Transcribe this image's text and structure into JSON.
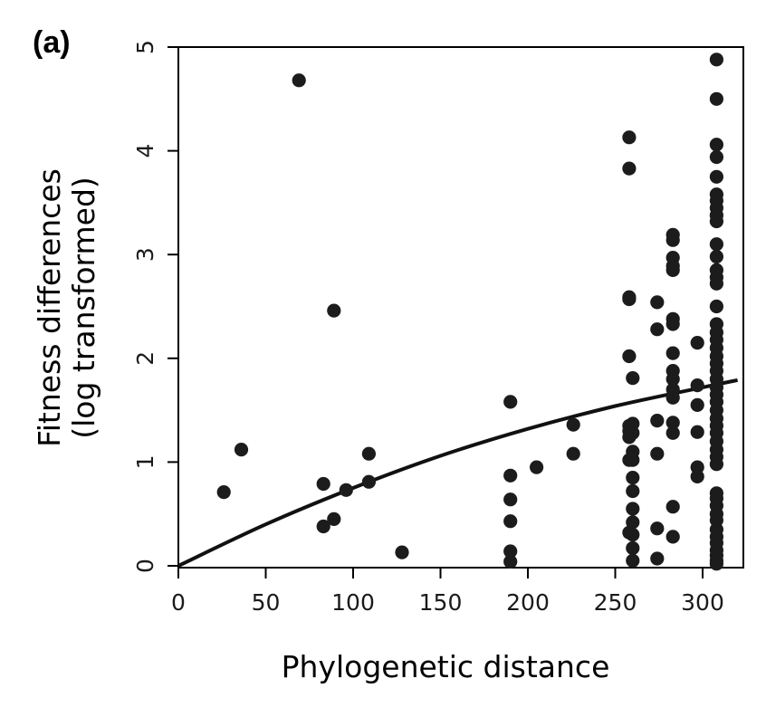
{
  "chart_data": {
    "type": "scatter",
    "panel_label": "(a)",
    "xlabel": "Phylogenetic distance",
    "ylabel_line1": "Fitness differences",
    "ylabel_line2": "(log transformed)",
    "xlim": [
      0,
      320
    ],
    "ylim": [
      0,
      5
    ],
    "x_ticks": [
      0,
      50,
      100,
      150,
      200,
      250,
      300
    ],
    "y_ticks": [
      0,
      1,
      2,
      3,
      4,
      5
    ],
    "grid": false,
    "fit_curve": {
      "type": "saturating curve through origin",
      "points": [
        [
          0,
          0
        ],
        [
          50,
          0.4
        ],
        [
          100,
          0.75
        ],
        [
          150,
          1.06
        ],
        [
          200,
          1.32
        ],
        [
          250,
          1.54
        ],
        [
          300,
          1.72
        ],
        [
          320,
          1.79
        ]
      ]
    },
    "points": [
      [
        26,
        0.71
      ],
      [
        36,
        1.12
      ],
      [
        69,
        4.68
      ],
      [
        83,
        0.79
      ],
      [
        83,
        0.38
      ],
      [
        89,
        2.46
      ],
      [
        89,
        0.45
      ],
      [
        96,
        0.73
      ],
      [
        109,
        1.08
      ],
      [
        109,
        0.81
      ],
      [
        128,
        0.13
      ],
      [
        190,
        1.58
      ],
      [
        190,
        0.87
      ],
      [
        190,
        0.64
      ],
      [
        190,
        0.43
      ],
      [
        190,
        0.14
      ],
      [
        190,
        0.04
      ],
      [
        205,
        0.95
      ],
      [
        226,
        1.36
      ],
      [
        226,
        1.08
      ],
      [
        258,
        4.13
      ],
      [
        258,
        3.83
      ],
      [
        258,
        2.59
      ],
      [
        258,
        2.57
      ],
      [
        258,
        2.02
      ],
      [
        258,
        1.35
      ],
      [
        258,
        1.3
      ],
      [
        258,
        1.24
      ],
      [
        258,
        1.02
      ],
      [
        258,
        0.32
      ],
      [
        260,
        1.81
      ],
      [
        260,
        1.37
      ],
      [
        260,
        1.28
      ],
      [
        260,
        1.1
      ],
      [
        260,
        1.02
      ],
      [
        260,
        0.85
      ],
      [
        260,
        0.72
      ],
      [
        260,
        0.55
      ],
      [
        260,
        0.42
      ],
      [
        260,
        0.3
      ],
      [
        260,
        0.17
      ],
      [
        260,
        0.05
      ],
      [
        274,
        2.54
      ],
      [
        274,
        2.28
      ],
      [
        274,
        1.4
      ],
      [
        274,
        1.08
      ],
      [
        274,
        0.36
      ],
      [
        274,
        0.07
      ],
      [
        283,
        3.19
      ],
      [
        283,
        3.14
      ],
      [
        283,
        2.97
      ],
      [
        283,
        2.89
      ],
      [
        283,
        2.85
      ],
      [
        283,
        2.38
      ],
      [
        283,
        2.33
      ],
      [
        283,
        2.05
      ],
      [
        283,
        1.88
      ],
      [
        283,
        1.8
      ],
      [
        283,
        1.7
      ],
      [
        283,
        1.62
      ],
      [
        283,
        1.38
      ],
      [
        283,
        1.28
      ],
      [
        283,
        0.57
      ],
      [
        283,
        0.28
      ],
      [
        297,
        2.15
      ],
      [
        297,
        1.74
      ],
      [
        297,
        1.55
      ],
      [
        297,
        1.29
      ],
      [
        297,
        0.95
      ],
      [
        297,
        0.86
      ],
      [
        308,
        4.88
      ],
      [
        308,
        4.5
      ],
      [
        308,
        4.06
      ],
      [
        308,
        3.94
      ],
      [
        308,
        3.75
      ],
      [
        308,
        3.58
      ],
      [
        308,
        3.52
      ],
      [
        308,
        3.45
      ],
      [
        308,
        3.38
      ],
      [
        308,
        3.32
      ],
      [
        308,
        3.1
      ],
      [
        308,
        2.98
      ],
      [
        308,
        2.85
      ],
      [
        308,
        2.78
      ],
      [
        308,
        2.72
      ],
      [
        308,
        2.5
      ],
      [
        308,
        2.33
      ],
      [
        308,
        2.25
      ],
      [
        308,
        2.18
      ],
      [
        308,
        2.1
      ],
      [
        308,
        2.02
      ],
      [
        308,
        1.95
      ],
      [
        308,
        1.88
      ],
      [
        308,
        1.8
      ],
      [
        308,
        1.72
      ],
      [
        308,
        1.65
      ],
      [
        308,
        1.58
      ],
      [
        308,
        1.5
      ],
      [
        308,
        1.42
      ],
      [
        308,
        1.35
      ],
      [
        308,
        1.28
      ],
      [
        308,
        1.2
      ],
      [
        308,
        1.12
      ],
      [
        308,
        1.05
      ],
      [
        308,
        0.98
      ],
      [
        308,
        0.7
      ],
      [
        308,
        0.65
      ],
      [
        308,
        0.58
      ],
      [
        308,
        0.5
      ],
      [
        308,
        0.44
      ],
      [
        308,
        0.35
      ],
      [
        308,
        0.28
      ],
      [
        308,
        0.22
      ],
      [
        308,
        0.15
      ],
      [
        308,
        0.1
      ],
      [
        308,
        0.05
      ],
      [
        308,
        0.02
      ]
    ]
  }
}
